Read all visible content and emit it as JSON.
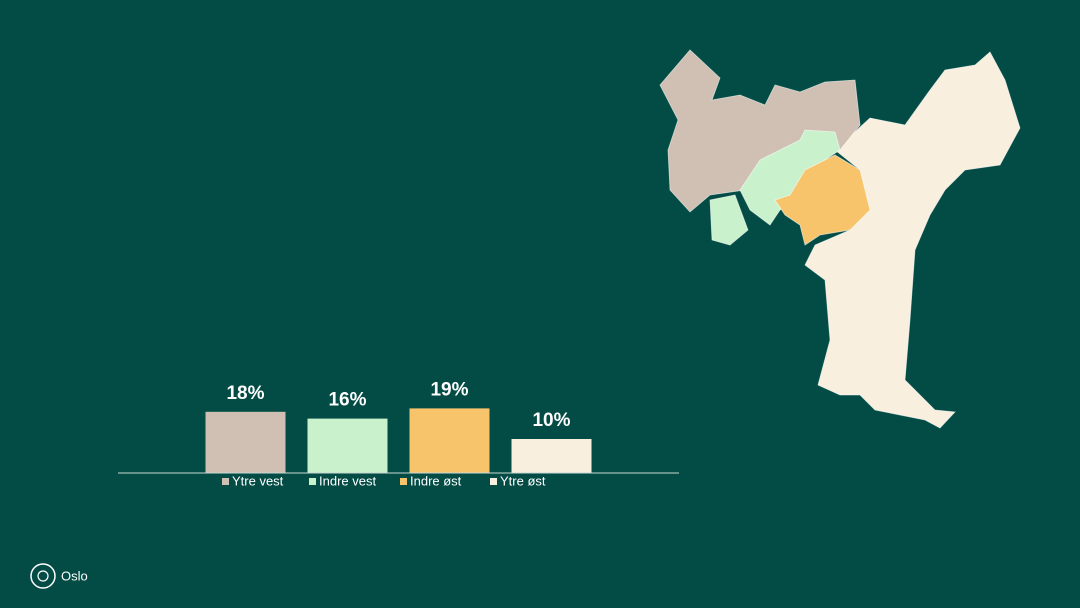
{
  "chart_data": {
    "type": "bar",
    "categories": [
      null
    ],
    "series": [
      {
        "name": "Ytre vest",
        "color": "#cfc0b3",
        "values": [
          18
        ],
        "value_labels": [
          "18%"
        ]
      },
      {
        "name": "Indre vest",
        "color": "#c9f2cc",
        "values": [
          16
        ],
        "value_labels": [
          "16%"
        ]
      },
      {
        "name": "Indre øst",
        "color": "#f7c46c",
        "values": [
          19
        ],
        "value_labels": [
          "19%"
        ]
      },
      {
        "name": "Ytre øst",
        "color": "#f8efdf",
        "values": [
          10
        ],
        "value_labels": [
          "10%"
        ]
      }
    ],
    "ylim": [
      0,
      30
    ],
    "legend": "bottom"
  },
  "footer": {
    "logo_text": "Oslo"
  }
}
